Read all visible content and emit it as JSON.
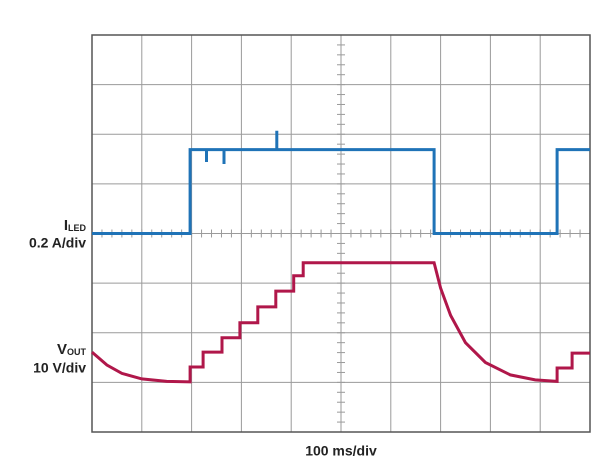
{
  "chart_data": {
    "type": "line",
    "grid_divisions": {
      "x": 10,
      "y": 8
    },
    "xlim": [
      0,
      10
    ],
    "ylim": [
      0,
      8
    ],
    "x_scale": "100 ms/div",
    "grid_color": "#9a9a9a",
    "series": [
      {
        "label_main": "I",
        "label_sub": "LED",
        "scale": "0.2 A/div",
        "color": "#1f73b7",
        "x": [
          0,
          1.97,
          1.97,
          2.3,
          2.3,
          2.3,
          2.65,
          2.65,
          2.65,
          3.71,
          3.71,
          3.71,
          6.87,
          6.87,
          9.34,
          9.34,
          10
        ],
        "values": [
          4,
          4,
          5.69,
          5.69,
          5.44,
          5.69,
          5.69,
          5.4,
          5.69,
          5.69,
          6.07,
          5.69,
          5.69,
          4,
          4,
          5.69,
          5.69
        ]
      },
      {
        "label_main": "V",
        "label_sub": "OUT",
        "scale": "10 V/div",
        "color": "#b0174a",
        "x": [
          0,
          0.3,
          0.6,
          1.0,
          1.5,
          1.97,
          1.97,
          2.23,
          2.23,
          2.61,
          2.61,
          2.97,
          2.97,
          3.33,
          3.33,
          3.69,
          3.69,
          4.05,
          4.05,
          4.24,
          4.24,
          6.87,
          7.0,
          7.2,
          7.5,
          7.9,
          8.4,
          8.9,
          9.34,
          9.34,
          9.64,
          9.64,
          10
        ],
        "values": [
          1.61,
          1.35,
          1.18,
          1.07,
          1.02,
          1.01,
          1.31,
          1.31,
          1.61,
          1.61,
          1.9,
          1.9,
          2.2,
          2.2,
          2.52,
          2.52,
          2.84,
          2.84,
          3.15,
          3.15,
          3.41,
          3.41,
          2.9,
          2.35,
          1.8,
          1.4,
          1.15,
          1.05,
          1.02,
          1.29,
          1.29,
          1.59,
          1.59
        ]
      }
    ]
  }
}
